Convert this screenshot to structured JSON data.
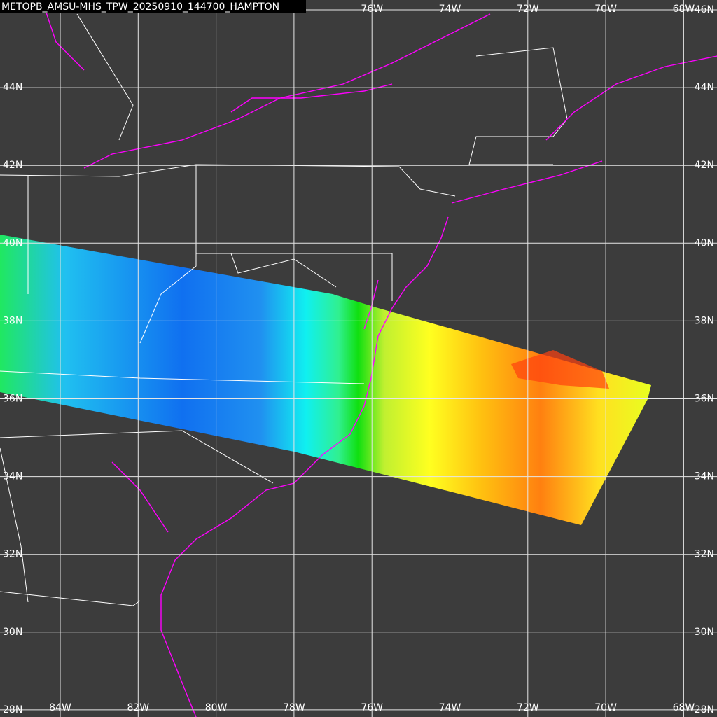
{
  "title": "METOPB_AMSU-MHS_TPW_20250910_144700_HAMPTON",
  "latitudes": [
    "46N",
    "44N",
    "42N",
    "40N",
    "38N",
    "36N",
    "34N",
    "32N",
    "30N",
    "28N"
  ],
  "longitudes": [
    "84W",
    "82W",
    "80W",
    "78W",
    "76W",
    "74W",
    "72W",
    "70W",
    "68W"
  ]
}
